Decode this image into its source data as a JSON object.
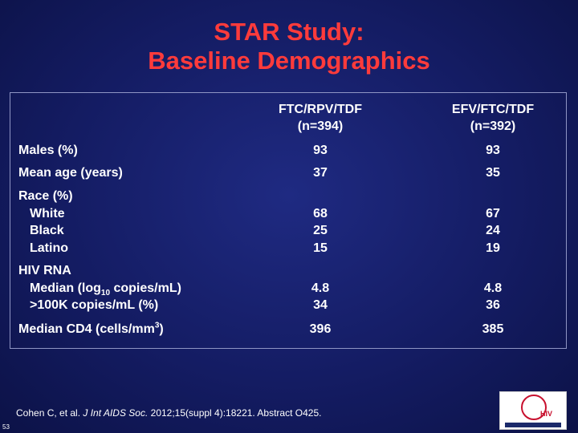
{
  "title": {
    "line1": "STAR Study:",
    "line2": "Baseline Demographics"
  },
  "table": {
    "columns": [
      {
        "name": "FTC/RPV/TDF",
        "n": "(n=394)"
      },
      {
        "name": "EFV/FTC/TDF",
        "n": "(n=392)"
      }
    ],
    "rows": {
      "males": {
        "label": "Males (%)",
        "v1": "93",
        "v2": "93"
      },
      "age": {
        "label": "Mean age (years)",
        "v1": "37",
        "v2": "35"
      },
      "race": {
        "label": "Race (%)",
        "white": {
          "label": "White",
          "v1": "68",
          "v2": "67"
        },
        "black": {
          "label": "Black",
          "v1": "25",
          "v2": "24"
        },
        "latino": {
          "label": "Latino",
          "v1": "15",
          "v2": "19"
        }
      },
      "hiv": {
        "label": "HIV RNA",
        "median": {
          "label_pre": "Median (log",
          "label_sub": "10",
          "label_post": " copies/mL)",
          "v1": "4.8",
          "v2": "4.8"
        },
        "over100k": {
          "label": ">100K copies/mL (%)",
          "v1": "34",
          "v2": "36"
        }
      },
      "cd4": {
        "label_pre": "Median CD4 (cells/mm",
        "label_sup": "3",
        "label_post": ")",
        "v1": "396",
        "v2": "385"
      }
    }
  },
  "citation": {
    "pre": "Cohen C, et al. ",
    "journal": "J Int AIDS Soc.",
    "post": " 2012;15(suppl 4):18221. Abstract O425."
  },
  "slide_number": "53",
  "logo": {
    "text": "HIV"
  }
}
